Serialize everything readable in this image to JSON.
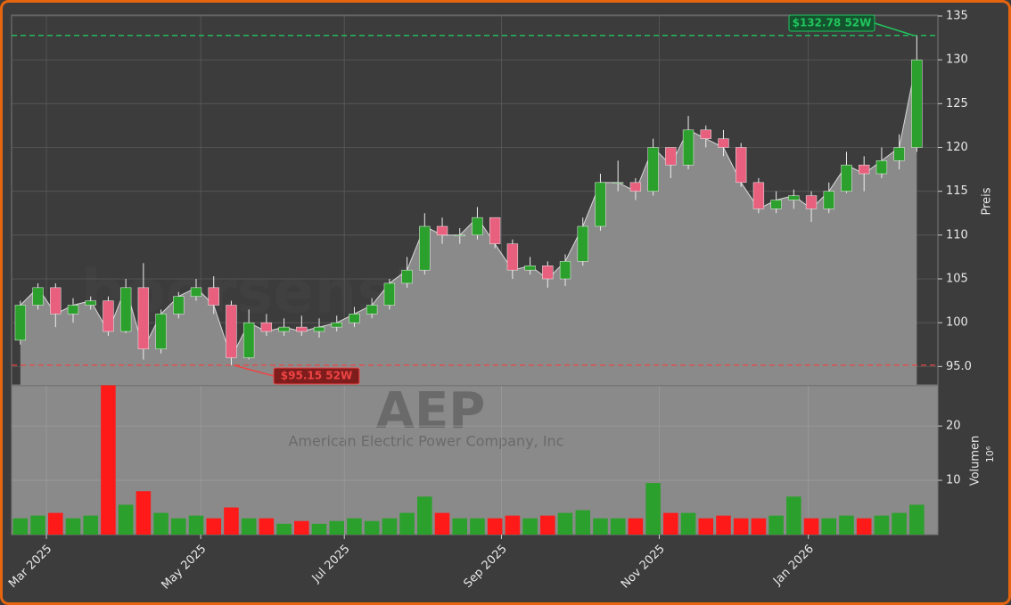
{
  "chart_data": {
    "type": "candlestick",
    "watermark": "boersensignale.trade",
    "ticker": "AEP",
    "company": "American Electric Power Company, Inc",
    "ylabel": "Preis",
    "y2label": "Volumen",
    "y2_offset_label": "10⁶",
    "categories": [
      null,
      null,
      null,
      null,
      null,
      null,
      null,
      null,
      null,
      null,
      null,
      null,
      null,
      null,
      null,
      null,
      null,
      null,
      null,
      null,
      null,
      null,
      null,
      null,
      null,
      null,
      null,
      null,
      null,
      null,
      null,
      null,
      null,
      null,
      null,
      null,
      null,
      null,
      null,
      null,
      null,
      null,
      null,
      null,
      null,
      null,
      null,
      null,
      null,
      null,
      null,
      null
    ],
    "open": [
      98,
      102,
      104,
      101,
      102,
      102.5,
      99,
      104,
      97,
      101,
      103,
      104,
      102,
      96,
      100,
      99,
      99.5,
      99,
      99.5,
      100,
      101,
      102,
      104.5,
      106,
      111,
      110,
      110,
      112,
      109,
      106,
      106.5,
      105,
      107,
      111,
      116,
      116,
      115,
      120,
      118,
      122,
      121,
      120,
      116,
      113,
      114,
      114.5,
      113,
      115,
      118,
      117,
      118.5,
      120
    ],
    "high": [
      102.5,
      104.5,
      104.5,
      102.8,
      103,
      103,
      105,
      106.8,
      101.5,
      103.5,
      105,
      105.3,
      102.5,
      101.5,
      101,
      100.5,
      100.8,
      100.5,
      100.8,
      101.8,
      102.8,
      105,
      107.5,
      112.5,
      112,
      110.8,
      113.2,
      112,
      109.5,
      107.5,
      107,
      107.8,
      112,
      117,
      118.5,
      116.5,
      121,
      120,
      123.6,
      122.5,
      122,
      120.5,
      116.5,
      115,
      115.2,
      115,
      116,
      119.5,
      119,
      120,
      121.5,
      132.78
    ],
    "low": [
      97.5,
      101.5,
      99.5,
      100,
      101.5,
      98.5,
      98.8,
      95.8,
      96.5,
      100.5,
      102.5,
      101,
      95.15,
      95.8,
      98.5,
      98.5,
      98.5,
      98.3,
      99,
      99.5,
      100.5,
      101.5,
      104,
      105.5,
      109,
      109,
      109.5,
      108.5,
      105,
      105.5,
      104,
      104.2,
      106.5,
      110.5,
      115,
      114,
      114.5,
      116.5,
      117.5,
      120,
      119,
      115.5,
      112.5,
      112.5,
      113,
      111.5,
      112.5,
      114.8,
      115,
      116.5,
      117.5,
      119.5
    ],
    "close": [
      102,
      104,
      101,
      102,
      102.5,
      99,
      104,
      97,
      101,
      103,
      104,
      102,
      96,
      100,
      99,
      99.5,
      99,
      99.5,
      100,
      101,
      102,
      104.5,
      106,
      111,
      110,
      110,
      112,
      109,
      106,
      106.5,
      105,
      107,
      111,
      116,
      116,
      115,
      120,
      118,
      122,
      121,
      120,
      116,
      113,
      114,
      114.5,
      113,
      115,
      118,
      117,
      118.5,
      120,
      130
    ],
    "volume": [
      3,
      3.5,
      4,
      3,
      3.5,
      27.5,
      5.5,
      8,
      4,
      3,
      3.5,
      3,
      5,
      3,
      3,
      2,
      2.5,
      2,
      2.5,
      3,
      2.5,
      3,
      4,
      7,
      4,
      3,
      3,
      3,
      3.5,
      3,
      3.5,
      4,
      4.5,
      3,
      3,
      3,
      9.5,
      4,
      4,
      3,
      3.5,
      3,
      3,
      3.5,
      7,
      3,
      3,
      3.5,
      3,
      3.5,
      4,
      5.5
    ],
    "up_color": "#2ca02c",
    "down_color": "#ff1a1a",
    "area_color": "#8a8a8a",
    "xlim": [
      -0.5,
      52.2
    ],
    "xticks": [
      {
        "value": 1.48,
        "label": "Mar 2025"
      },
      {
        "value": 10.26,
        "label": "May 2025"
      },
      {
        "value": 18.43,
        "label": "Jul 2025"
      },
      {
        "value": 27.37,
        "label": "Sep 2025"
      },
      {
        "value": 36.35,
        "label": "Nov 2025"
      },
      {
        "value": 44.83,
        "label": "Jan 2026"
      }
    ],
    "ylim": [
      92.9,
      135.1
    ],
    "yticks": [
      {
        "value": 95,
        "label": "95.0"
      },
      100,
      105,
      110,
      115,
      120,
      125,
      130,
      135
    ],
    "y2lim": [
      0,
      27.4
    ],
    "y2ticks": [
      10,
      20
    ],
    "grid": true,
    "annotations": [
      {
        "text": "$132.78 52W",
        "value": 132.78,
        "color": "#22c55e"
      },
      {
        "text": "$95.15 52W",
        "value": 95.15,
        "color": "#ef4444"
      }
    ]
  }
}
